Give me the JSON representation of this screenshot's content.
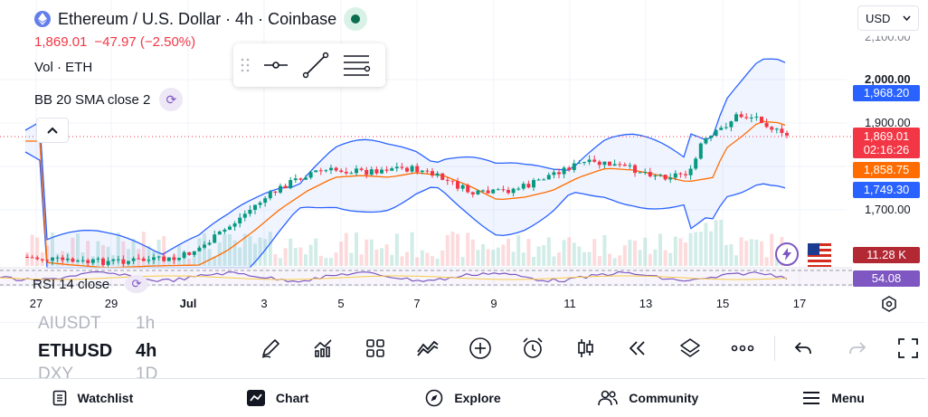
{
  "header": {
    "title": "Ethereum / U.S. Dollar · 4h · Coinbase",
    "price": "1,869.01",
    "change": "−47.97 (−2.50%)",
    "volume_label": "Vol · ETH",
    "bb_label": "BB 20 SMA close 2",
    "rsi_label": "RSI 14 close"
  },
  "currency_select": {
    "value": "USD"
  },
  "price_axis": {
    "top_partial": "2,100.00",
    "ticks": [
      "2,000.00",
      "1,900.00",
      "1,700.00"
    ]
  },
  "price_tags": {
    "bb_upper": "1,968.20",
    "last_price": "1,869.01",
    "countdown": "02:16:26",
    "bb_basis": "1,858.75",
    "bb_lower": "1,749.30",
    "volume": "11.28 K",
    "rsi": "54.08"
  },
  "colors": {
    "up": "#089981",
    "down": "#f23645",
    "bb_band": "#2962ff",
    "bb_basis": "#ff6d00",
    "rsi": "#7e57c2",
    "tag_blue": "#2962ff",
    "tag_red": "#f23645",
    "tag_orange": "#ff6d00",
    "tag_dark_red": "#b22833",
    "tag_purple": "#7e57c2"
  },
  "date_axis": [
    "27",
    "29",
    "Jul",
    "3",
    "5",
    "7",
    "9",
    "11",
    "13",
    "15",
    "17"
  ],
  "symbols": {
    "prev": "AIUSDT",
    "prev_tf": "1h",
    "current": "ETHUSD",
    "current_tf": "4h",
    "next": "DXY",
    "next_tf": "1D"
  },
  "nav": [
    {
      "label": "Watchlist",
      "icon": "watchlist-icon"
    },
    {
      "label": "Chart",
      "icon": "chart-icon"
    },
    {
      "label": "Explore",
      "icon": "compass-icon"
    },
    {
      "label": "Community",
      "icon": "community-icon"
    },
    {
      "label": "Menu",
      "icon": "menu-icon"
    }
  ]
}
